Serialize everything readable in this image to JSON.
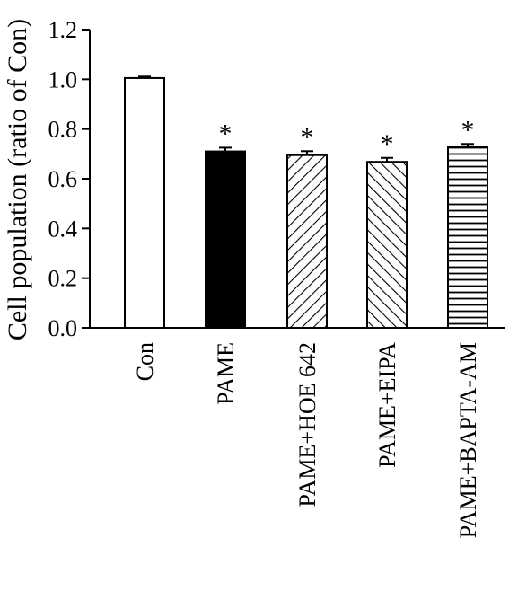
{
  "chart_data": {
    "type": "bar",
    "ylabel": "Cell population (ratio of Con)",
    "ylim": [
      0,
      1.2
    ],
    "yticks": [
      "0.0",
      "0.2",
      "0.4",
      "0.6",
      "0.8",
      "1.0",
      "1.2"
    ],
    "categories": [
      "Con",
      "PAME",
      "PAME+HOE 642",
      "PAME+EIPA",
      "PAME+BAPTA-AM"
    ],
    "values": [
      1.005,
      0.71,
      0.695,
      0.668,
      0.73
    ],
    "errors": [
      0.006,
      0.015,
      0.016,
      0.016,
      0.01
    ],
    "significance": [
      "",
      "*",
      "*",
      "*",
      "*"
    ],
    "fills": [
      "white",
      "black",
      "diagonal-right",
      "diagonal-left",
      "horizontal"
    ],
    "grid": false
  }
}
